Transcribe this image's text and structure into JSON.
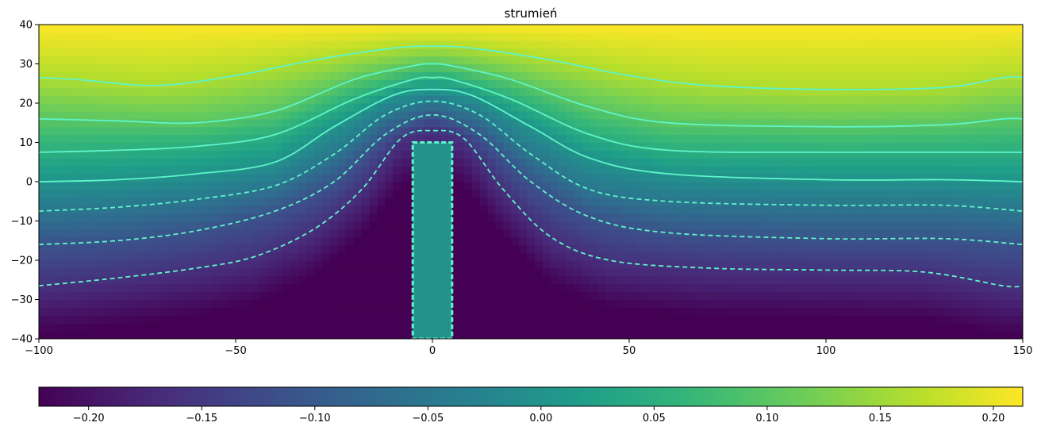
{
  "chart_data": {
    "type": "heatmap",
    "title": "strumień",
    "xlabel": "",
    "ylabel": "",
    "xlim": [
      -100,
      150
    ],
    "ylim": [
      -40,
      40
    ],
    "x_ticks": [
      -100,
      -50,
      0,
      50,
      100,
      150
    ],
    "y_ticks": [
      -40,
      -30,
      -20,
      -10,
      0,
      10,
      20,
      30,
      40
    ],
    "x_tick_labels": [
      "−100",
      "−50",
      "0",
      "50",
      "100",
      "150"
    ],
    "y_tick_labels": [
      "−40",
      "−30",
      "−20",
      "−10",
      "0",
      "10",
      "20",
      "30",
      "40"
    ],
    "colormap": "viridis",
    "colorbar": {
      "orientation": "horizontal",
      "range": [
        -0.222,
        0.213
      ],
      "ticks": [
        -0.2,
        -0.15,
        -0.1,
        -0.05,
        0,
        0.05,
        0.1,
        0.15,
        0.2
      ],
      "tick_labels": [
        "−0.20",
        "−0.15",
        "−0.10",
        "−0.05",
        "0.00",
        "0.05",
        "0.10",
        "0.15",
        "0.20"
      ]
    },
    "obstacle": {
      "x": [
        -5,
        5
      ],
      "y": [
        -40,
        10
      ],
      "value": 0
    },
    "contour_color": "#5ff5c8",
    "contours": [
      {
        "style": "solid",
        "points": [
          [
            -100,
            26.5
          ],
          [
            -90,
            26
          ],
          [
            -70,
            24.5
          ],
          [
            -50,
            27
          ],
          [
            -30,
            31
          ],
          [
            -10,
            34
          ],
          [
            0,
            34.5
          ],
          [
            10,
            34
          ],
          [
            30,
            31
          ],
          [
            50,
            27
          ],
          [
            70,
            24.5
          ],
          [
            100,
            23.5
          ],
          [
            130,
            24
          ],
          [
            145,
            26.5
          ],
          [
            150,
            26.5
          ]
        ]
      },
      {
        "style": "solid",
        "points": [
          [
            -100,
            16
          ],
          [
            -80,
            15.5
          ],
          [
            -60,
            15
          ],
          [
            -40,
            18
          ],
          [
            -20,
            26
          ],
          [
            -5,
            29.5
          ],
          [
            0,
            30
          ],
          [
            5,
            29.5
          ],
          [
            20,
            26
          ],
          [
            40,
            19
          ],
          [
            60,
            15
          ],
          [
            100,
            14
          ],
          [
            130,
            14.5
          ],
          [
            145,
            16
          ],
          [
            150,
            16
          ]
        ]
      },
      {
        "style": "solid",
        "points": [
          [
            -100,
            7.5
          ],
          [
            -80,
            8
          ],
          [
            -60,
            9
          ],
          [
            -40,
            12
          ],
          [
            -20,
            21
          ],
          [
            -5,
            26
          ],
          [
            0,
            26.5
          ],
          [
            5,
            26
          ],
          [
            20,
            21
          ],
          [
            40,
            12
          ],
          [
            60,
            8
          ],
          [
            100,
            7.5
          ],
          [
            130,
            7.5
          ],
          [
            150,
            7.5
          ]
        ]
      },
      {
        "style": "solid",
        "points": [
          [
            -100,
            0
          ],
          [
            -80,
            0.5
          ],
          [
            -60,
            2
          ],
          [
            -40,
            5
          ],
          [
            -25,
            14
          ],
          [
            -10,
            22
          ],
          [
            0,
            23.5
          ],
          [
            10,
            22
          ],
          [
            25,
            14
          ],
          [
            40,
            6
          ],
          [
            60,
            2
          ],
          [
            100,
            0.5
          ],
          [
            130,
            0.5
          ],
          [
            150,
            0
          ]
        ]
      },
      {
        "style": "dashed",
        "points": [
          [
            -100,
            -7.5
          ],
          [
            -80,
            -6.5
          ],
          [
            -60,
            -4.5
          ],
          [
            -40,
            -1
          ],
          [
            -25,
            7
          ],
          [
            -12,
            17
          ],
          [
            0,
            20.5
          ],
          [
            12,
            17
          ],
          [
            25,
            7
          ],
          [
            40,
            -2
          ],
          [
            60,
            -5
          ],
          [
            100,
            -6
          ],
          [
            130,
            -6
          ],
          [
            150,
            -7.5
          ]
        ]
      },
      {
        "style": "dashed",
        "points": [
          [
            -100,
            -16
          ],
          [
            -80,
            -15
          ],
          [
            -60,
            -12.5
          ],
          [
            -40,
            -7.5
          ],
          [
            -25,
            0
          ],
          [
            -12,
            12
          ],
          [
            0,
            17
          ],
          [
            12,
            12
          ],
          [
            25,
            0
          ],
          [
            40,
            -9
          ],
          [
            60,
            -13
          ],
          [
            100,
            -14.5
          ],
          [
            130,
            -14.5
          ],
          [
            150,
            -16
          ]
        ]
      },
      {
        "style": "dashed",
        "points": [
          [
            -100,
            -26.5
          ],
          [
            -80,
            -24.5
          ],
          [
            -60,
            -22
          ],
          [
            -45,
            -19
          ],
          [
            -30,
            -12
          ],
          [
            -18,
            -2
          ],
          [
            -8,
            11
          ],
          [
            0,
            13
          ],
          [
            8,
            11
          ],
          [
            18,
            -2
          ],
          [
            30,
            -14
          ],
          [
            45,
            -20
          ],
          [
            70,
            -22
          ],
          [
            100,
            -22.5
          ],
          [
            125,
            -23
          ],
          [
            145,
            -26.5
          ],
          [
            150,
            -26.5
          ]
        ]
      }
    ]
  }
}
